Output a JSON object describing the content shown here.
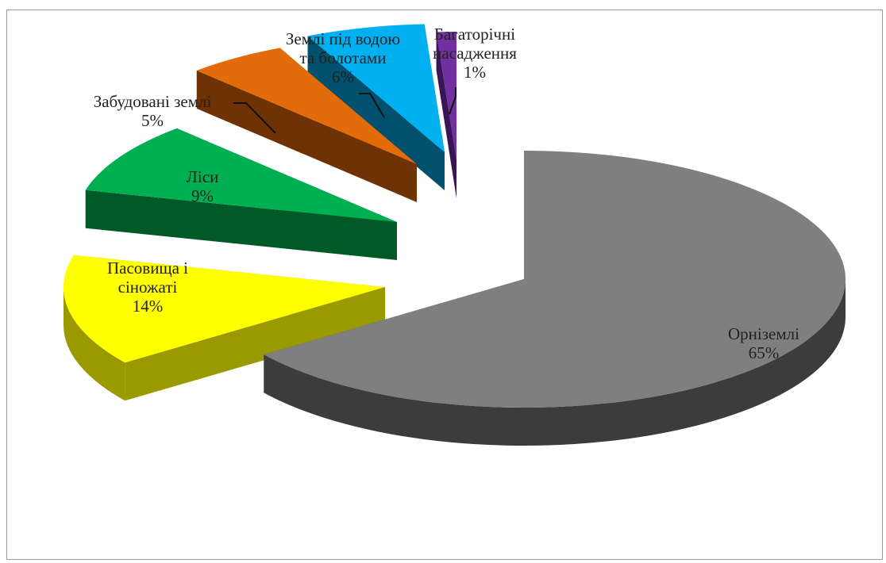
{
  "chart_data": {
    "type": "pie",
    "style": "3d-exploded",
    "slices": [
      {
        "label": [
          "Орніземлі"
        ],
        "value": 65,
        "pct_text": "65%",
        "color": "#7f7f7f",
        "side": "#3c3c3c"
      },
      {
        "label": [
          "Пасовища і",
          "сіножаті"
        ],
        "value": 14,
        "pct_text": "14%",
        "color": "#ffff00",
        "side": "#9a9a00"
      },
      {
        "label": [
          "Ліси"
        ],
        "value": 9,
        "pct_text": "9%",
        "color": "#00b050",
        "side": "#005a28"
      },
      {
        "label": [
          "Забудовані землі"
        ],
        "value": 5,
        "pct_text": "5%",
        "color": "#e36c0a",
        "side": "#6e3204"
      },
      {
        "label": [
          "Землі під водою",
          "та болотами"
        ],
        "value": 6,
        "pct_text": "6%",
        "color": "#00b0f0",
        "side": "#00506e"
      },
      {
        "label": [
          "Багаторічні",
          "насадження"
        ],
        "value": 1,
        "pct_text": "1%",
        "color": "#7030a0",
        "side": "#3a1455"
      }
    ],
    "legend": "none"
  }
}
